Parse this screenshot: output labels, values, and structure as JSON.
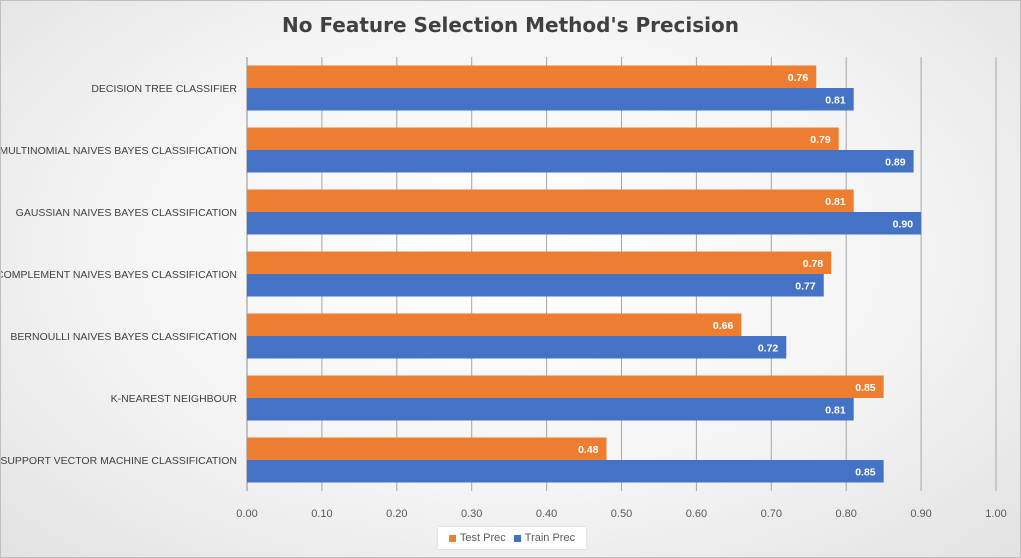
{
  "chart_data": {
    "type": "bar",
    "orientation": "horizontal",
    "title": "No Feature Selection Method's Precision",
    "categories": [
      "DECISION TREE CLASSIFIER",
      "MULTINOMIAL NAIVES BAYES CLASSIFICATION",
      "GAUSSIAN NAIVES BAYES CLASSIFICATION",
      "COMPLEMENT NAIVES BAYES CLASSIFICATION",
      "BERNOULLI NAIVES BAYES CLASSIFICATION",
      "K-NEAREST NEIGHBOUR",
      "SUPPORT VECTOR MACHINE CLASSIFICATION"
    ],
    "series": [
      {
        "name": "Test Prec",
        "color": "#ED7D31",
        "values": [
          0.76,
          0.79,
          0.81,
          0.78,
          0.66,
          0.85,
          0.48
        ],
        "labels": [
          "0.76",
          "0.79",
          "0.81",
          "0.78",
          "0.66",
          "0.85",
          "0.48"
        ]
      },
      {
        "name": "Train Prec",
        "color": "#4472C4",
        "values": [
          0.81,
          0.89,
          0.9,
          0.77,
          0.72,
          0.81,
          0.85
        ],
        "labels": [
          "0.81",
          "0.89",
          "0.90",
          "0.77",
          "0.72",
          "0.81",
          "0.85"
        ]
      }
    ],
    "xlim": [
      0,
      1.0
    ],
    "xticks": [
      "0.00",
      "0.10",
      "0.20",
      "0.30",
      "0.40",
      "0.50",
      "0.60",
      "0.70",
      "0.80",
      "0.90",
      "1.00"
    ],
    "grid": true,
    "legend_position": "bottom"
  }
}
